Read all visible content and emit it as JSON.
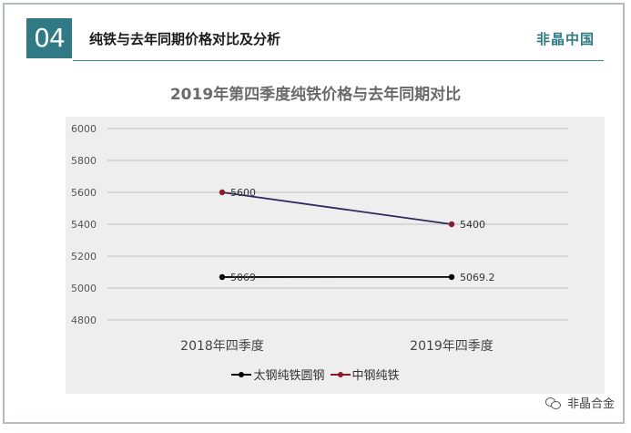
{
  "header": {
    "badge": "04",
    "title": "纯铁与去年同期价格对比及分析",
    "brand": "非晶中国"
  },
  "watermark": {
    "text": "非晶合金",
    "icon": "wechat-icon"
  },
  "chart_data": {
    "type": "line",
    "title": "2019年第四季度纯铁价格与去年同期对比",
    "categories": [
      "2018年四季度",
      "2019年四季度"
    ],
    "ylim": [
      4800,
      6000
    ],
    "yticks": [
      4800,
      5000,
      5200,
      5400,
      5600,
      5800,
      6000
    ],
    "grid": true,
    "legend_position": "bottom",
    "series": [
      {
        "name": "太钢纯铁圆钢",
        "values": [
          5069,
          5069.2
        ],
        "labels": [
          "5069",
          "5069.2"
        ],
        "color": "#000000"
      },
      {
        "name": "中钢纯铁",
        "values": [
          5600,
          5400
        ],
        "labels": [
          "5600",
          "5400"
        ],
        "color": "#2e2a5e",
        "marker_color": "#8b1a2b"
      }
    ]
  }
}
